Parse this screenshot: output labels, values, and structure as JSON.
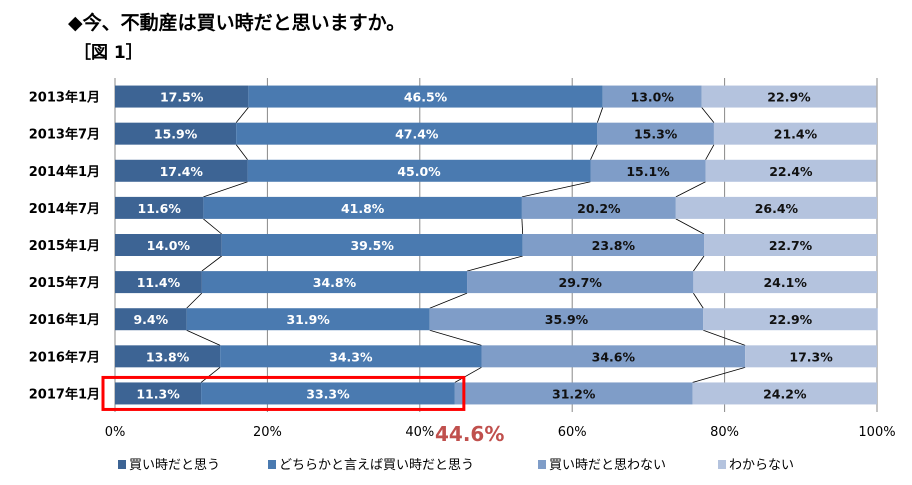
{
  "chart_data": {
    "type": "bar",
    "orientation": "horizontal",
    "stacked": "percent",
    "title": "◆今、不動産は買い時だと思いますか。",
    "subtitle": "［図 1］",
    "categories": [
      "2013年1月",
      "2013年7月",
      "2014年1月",
      "2014年7月",
      "2015年1月",
      "2015年7月",
      "2016年1月",
      "2016年7月",
      "2017年1月"
    ],
    "series": [
      {
        "name": "買い時だと思う",
        "color": "#3d6494",
        "values": [
          17.5,
          15.9,
          17.4,
          11.6,
          14.0,
          11.4,
          9.4,
          13.8,
          11.3
        ]
      },
      {
        "name": "どちらかと言えば買い時だと思う",
        "color": "#4a7ab0",
        "values": [
          46.5,
          47.4,
          45.0,
          41.8,
          39.5,
          34.8,
          31.9,
          34.3,
          33.3
        ]
      },
      {
        "name": "買い時だと思わない",
        "color": "#7f9dc8",
        "values": [
          13.0,
          15.3,
          15.1,
          20.2,
          23.8,
          29.7,
          35.9,
          34.6,
          31.2
        ]
      },
      {
        "name": "わからない",
        "color": "#b4c3de",
        "values": [
          22.9,
          21.4,
          22.4,
          26.4,
          22.7,
          24.1,
          22.9,
          17.3,
          24.2
        ]
      }
    ],
    "xlim": [
      0,
      100
    ],
    "xticks": [
      "0%",
      "20%",
      "40%",
      "60%",
      "80%",
      "100%"
    ],
    "grid": true,
    "legend": "bottom",
    "annotation": {
      "text": "44.6%",
      "color": "#c0504d",
      "highlight_color": "#ff0000",
      "highlight_category": "2017年1月"
    }
  }
}
